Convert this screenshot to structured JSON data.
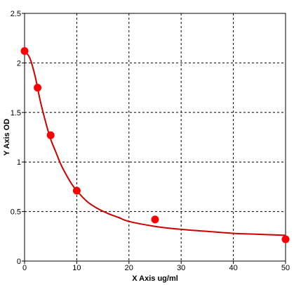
{
  "chart_data": {
    "type": "scatter",
    "title": "",
    "xlabel": "X Axis ug/ml",
    "ylabel": "Y Axis OD",
    "xlim": [
      0,
      50
    ],
    "ylim": [
      0,
      2.5
    ],
    "x_ticks": [
      0,
      10,
      20,
      30,
      40,
      50
    ],
    "y_ticks": [
      0,
      0.5,
      1,
      1.5,
      2,
      2.5
    ],
    "x_tick_labels": [
      "0",
      "10",
      "20",
      "30",
      "40",
      "50"
    ],
    "y_tick_labels": [
      "0",
      "0.5",
      "1",
      "1.5",
      "2",
      "2.5"
    ],
    "grid": true,
    "points": {
      "x": [
        0,
        2.5,
        5,
        10,
        25,
        50
      ],
      "y": [
        2.12,
        1.75,
        1.27,
        0.71,
        0.42,
        0.22
      ]
    },
    "fit_curve": {
      "x": [
        0,
        1,
        2,
        3,
        4,
        5,
        6,
        7,
        8,
        9,
        10,
        12,
        14,
        16,
        18,
        20,
        25,
        30,
        35,
        40,
        45,
        50
      ],
      "y": [
        2.12,
        2.05,
        1.87,
        1.62,
        1.41,
        1.23,
        1.1,
        0.97,
        0.87,
        0.78,
        0.71,
        0.6,
        0.53,
        0.48,
        0.44,
        0.4,
        0.35,
        0.32,
        0.3,
        0.28,
        0.27,
        0.26
      ]
    },
    "colors": {
      "series": "#ff0000",
      "curve": "#cc0000",
      "grid": "#000000",
      "axis": "#000000"
    }
  }
}
